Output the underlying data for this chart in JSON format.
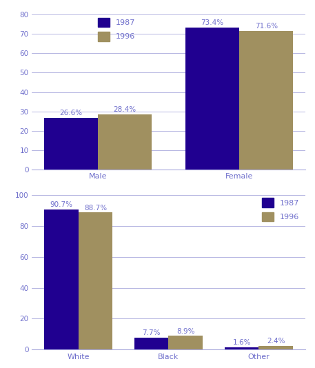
{
  "top": {
    "categories": [
      "Male",
      "Female"
    ],
    "values_1987": [
      26.6,
      73.4
    ],
    "values_1996": [
      28.4,
      71.6
    ],
    "labels_1987": [
      "26.6%",
      "73.4%"
    ],
    "labels_1996": [
      "28.4%",
      "71.6%"
    ],
    "ylim": [
      0,
      80
    ],
    "yticks": [
      0,
      10,
      20,
      30,
      40,
      50,
      60,
      70,
      80
    ]
  },
  "bottom": {
    "categories": [
      "White",
      "Black",
      "Other"
    ],
    "values_1987": [
      90.7,
      7.7,
      1.6
    ],
    "values_1996": [
      88.7,
      8.9,
      2.4
    ],
    "labels_1987": [
      "90.7%",
      "7.7%",
      "1.6%"
    ],
    "labels_1996": [
      "88.7%",
      "8.9%",
      "2.4%"
    ],
    "ylim": [
      0,
      100
    ],
    "yticks": [
      0,
      20,
      40,
      60,
      80,
      100
    ]
  },
  "color_1987": "#200090",
  "color_1996": "#a09060",
  "text_color": "#7070cc",
  "bar_width": 0.38,
  "legend_label_1987": "1987",
  "legend_label_1996": "1996",
  "background_color": "#ffffff",
  "label_fontsize": 7.5,
  "tick_fontsize": 7.5,
  "legend_fontsize": 8,
  "category_fontsize": 8,
  "grid_color": "#aaaadd",
  "spine_color": "#aaaadd"
}
